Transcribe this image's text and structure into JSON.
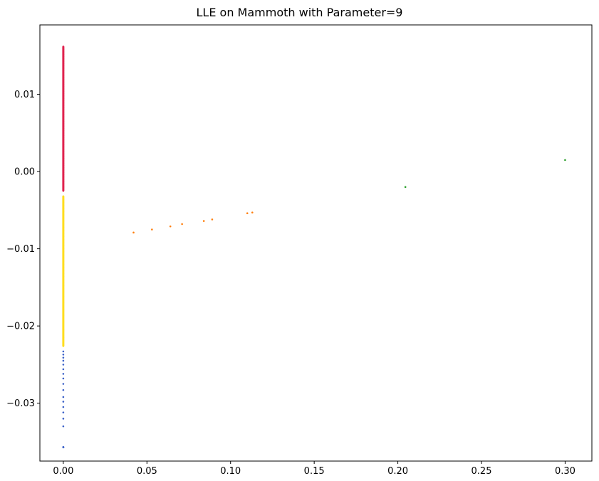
{
  "chart_data": {
    "type": "scatter",
    "title": "LLE on Mammoth with Parameter=9",
    "xlabel": "",
    "ylabel": "",
    "xlim": [
      -0.014,
      0.316
    ],
    "ylim": [
      -0.0375,
      0.019
    ],
    "xticks": [
      0.0,
      0.05,
      0.1,
      0.15,
      0.2,
      0.25,
      0.3
    ],
    "xtick_labels": [
      "0.00",
      "0.05",
      "0.10",
      "0.15",
      "0.20",
      "0.25",
      "0.30"
    ],
    "yticks": [
      0.01,
      0.0,
      -0.01,
      -0.02,
      -0.03
    ],
    "ytick_labels": [
      "0.01",
      "0.00",
      "−0.01",
      "−0.02",
      "−0.03"
    ],
    "grid": false,
    "legend": "none",
    "series": [
      {
        "color": "#e0234e",
        "x": [
          0.0,
          0.0,
          0.0,
          0.0,
          0.0,
          0.0,
          0.0,
          0.0,
          0.0,
          0.0,
          0.0,
          0.0,
          0.0,
          0.0,
          0.0,
          0.0,
          0.0,
          0.0,
          0.0,
          0.0,
          0.0,
          0.0,
          0.0,
          0.0,
          0.0,
          0.0,
          0.0,
          0.0,
          0.0,
          0.0,
          0.0,
          0.0,
          0.0,
          0.0,
          0.0,
          0.0,
          0.0,
          0.0,
          0.0,
          0.0,
          0.0,
          0.0,
          0.0,
          0.0,
          0.0,
          0.0,
          0.0,
          0.0,
          0.0,
          0.0,
          0.0,
          0.0,
          0.0,
          0.0,
          0.0,
          0.0,
          0.0,
          0.0,
          0.0,
          0.0,
          0.0,
          0.0,
          0.0
        ],
        "y": [
          0.0162,
          0.016,
          0.0158,
          0.0155,
          0.0152,
          0.0149,
          0.0146,
          0.0143,
          0.014,
          0.0137,
          0.0134,
          0.0131,
          0.0128,
          0.0125,
          0.0122,
          0.0119,
          0.0116,
          0.0113,
          0.011,
          0.0107,
          0.0104,
          0.0101,
          0.0098,
          0.0095,
          0.0092,
          0.0089,
          0.0086,
          0.0083,
          0.008,
          0.0077,
          0.0074,
          0.0071,
          0.0068,
          0.0065,
          0.0062,
          0.0059,
          0.0056,
          0.0053,
          0.005,
          0.0047,
          0.0044,
          0.0041,
          0.0038,
          0.0035,
          0.0032,
          0.0029,
          0.0026,
          0.0023,
          0.002,
          0.0017,
          0.0014,
          0.0011,
          0.0008,
          0.0005,
          0.0002,
          -0.0001,
          -0.0004,
          -0.0007,
          -0.001,
          -0.0013,
          -0.0016,
          -0.002,
          -0.0025
        ]
      },
      {
        "color": "#ffdd1f",
        "x": [
          0.0,
          0.0,
          0.0,
          0.0,
          0.0,
          0.0,
          0.0,
          0.0,
          0.0,
          0.0,
          0.0,
          0.0,
          0.0,
          0.0,
          0.0,
          0.0,
          0.0,
          0.0,
          0.0,
          0.0,
          0.0,
          0.0,
          0.0,
          0.0,
          0.0,
          0.0,
          0.0,
          0.0,
          0.0,
          0.0,
          0.0,
          0.0,
          0.0,
          0.0,
          0.0,
          0.0,
          0.0,
          0.0,
          0.0,
          0.0
        ],
        "y": [
          -0.0032,
          -0.0036,
          -0.004,
          -0.0044,
          -0.0048,
          -0.0052,
          -0.0056,
          -0.006,
          -0.0064,
          -0.0068,
          -0.0072,
          -0.0076,
          -0.008,
          -0.0084,
          -0.0088,
          -0.0092,
          -0.0096,
          -0.01,
          -0.0104,
          -0.0108,
          -0.0112,
          -0.0116,
          -0.012,
          -0.0124,
          -0.0128,
          -0.0132,
          -0.0136,
          -0.014,
          -0.0144,
          -0.0148,
          -0.0152,
          -0.0156,
          -0.0162,
          -0.017,
          -0.0178,
          -0.0186,
          -0.0195,
          -0.0205,
          -0.0215,
          -0.0226
        ]
      },
      {
        "color": "#3c62c8",
        "x": [
          0.0,
          0.0,
          0.0,
          0.0,
          0.0,
          0.0,
          0.0,
          0.0,
          0.0,
          0.0,
          0.0,
          0.0,
          0.0,
          0.0,
          0.0,
          0.0,
          0.0,
          0.0,
          0.0,
          0.0,
          0.0
        ],
        "y": [
          -0.0233,
          -0.0237,
          -0.0241,
          -0.0245,
          -0.025,
          -0.0256,
          -0.0262,
          -0.0268,
          -0.0275,
          -0.0283,
          -0.0292,
          -0.0298,
          -0.0305,
          -0.0312,
          -0.032,
          -0.033,
          -0.0357,
          -0.0357,
          -0.0357,
          -0.0357,
          -0.0357
        ]
      },
      {
        "color": "#ff7f0e",
        "x": [
          0.042,
          0.053,
          0.064,
          0.071,
          0.084,
          0.089,
          0.11,
          0.113
        ],
        "y": [
          -0.0079,
          -0.0075,
          -0.0071,
          -0.0068,
          -0.0064,
          -0.0062,
          -0.0054,
          -0.0053
        ]
      },
      {
        "color": "#2ca02c",
        "x": [
          0.2045,
          0.3
        ],
        "y": [
          -0.002,
          0.0015
        ]
      }
    ]
  }
}
